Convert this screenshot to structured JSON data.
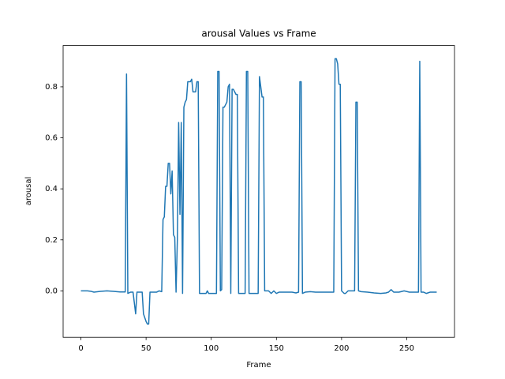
{
  "chart_data": {
    "type": "line",
    "title": "arousal Values vs Frame",
    "x_label": "Frame",
    "y_label": "arousal",
    "x": [
      0,
      5,
      8,
      10,
      15,
      20,
      25,
      30,
      34,
      35,
      36,
      38,
      40,
      42,
      43,
      47,
      48,
      50,
      51,
      52,
      53,
      56,
      58,
      60,
      62,
      63,
      64,
      65,
      66,
      67,
      68,
      69,
      70,
      71,
      72,
      73,
      74,
      75,
      76,
      77,
      78,
      79,
      80,
      81,
      82,
      84,
      85,
      86,
      88,
      89,
      90,
      91,
      93,
      96,
      97,
      98,
      104,
      105,
      106,
      107,
      108,
      109,
      110,
      112,
      113,
      114,
      115,
      116,
      117,
      119,
      120,
      121,
      126,
      127,
      128,
      129,
      136,
      137,
      138,
      139,
      140,
      141,
      144,
      146,
      148,
      150,
      152,
      157,
      162,
      165,
      167,
      168,
      169,
      170,
      172,
      176,
      180,
      185,
      190,
      194,
      195,
      196,
      197,
      198,
      199,
      200,
      202,
      203,
      205,
      210,
      211,
      212,
      213,
      215,
      220,
      225,
      230,
      234,
      236,
      238,
      240,
      244,
      248,
      252,
      258,
      259,
      260,
      261,
      263,
      265,
      268,
      273
    ],
    "series": [
      {
        "name": "arousal",
        "color": "#1f77b4",
        "values": [
          0,
          0,
          -0.002,
          -0.005,
          -0.002,
          0,
          -0.002,
          -0.004,
          -0.004,
          0.85,
          -0.01,
          -0.005,
          -0.005,
          -0.09,
          -0.005,
          -0.005,
          -0.09,
          -0.12,
          -0.13,
          -0.13,
          -0.005,
          -0.005,
          -0.005,
          0,
          -0.003,
          0.28,
          0.29,
          0.41,
          0.41,
          0.5,
          0.5,
          0.38,
          0.47,
          0.22,
          0.21,
          -0.005,
          0.2,
          0.66,
          0.3,
          0.66,
          -0.01,
          0.72,
          0.74,
          0.75,
          0.82,
          0.82,
          0.83,
          0.78,
          0.78,
          0.82,
          0.82,
          -0.01,
          -0.01,
          -0.01,
          0,
          -0.01,
          -0.01,
          0.86,
          0.86,
          0,
          0.005,
          0.72,
          0.72,
          0.74,
          0.8,
          0.81,
          -0.01,
          0.79,
          0.79,
          0.77,
          0.77,
          -0.01,
          -0.01,
          0.86,
          0.86,
          -0.01,
          -0.01,
          0.84,
          0.8,
          0.76,
          0.76,
          0,
          0,
          -0.01,
          0,
          -0.01,
          -0.005,
          -0.005,
          -0.005,
          -0.008,
          -0.005,
          0.82,
          0.82,
          -0.01,
          -0.005,
          -0.003,
          -0.005,
          -0.005,
          -0.005,
          -0.005,
          0.91,
          0.91,
          0.89,
          0.81,
          0.81,
          0,
          -0.01,
          -0.01,
          0,
          0,
          0.74,
          0.74,
          0,
          -0.003,
          -0.005,
          -0.008,
          -0.01,
          -0.008,
          -0.005,
          0.005,
          -0.005,
          -0.005,
          0,
          -0.005,
          -0.005,
          -0.005,
          0.9,
          -0.005,
          -0.005,
          -0.01,
          -0.005,
          -0.005
        ]
      }
    ],
    "xlim": [
      -13.65,
      286.65
    ],
    "xticks": [
      0,
      50,
      100,
      150,
      200,
      250
    ],
    "ylim": [
      -0.182,
      0.962
    ],
    "yticks": [
      {
        "value": 0,
        "label": "0.0"
      },
      {
        "value": 0.2,
        "label": "0.2"
      },
      {
        "value": 0.4,
        "label": "0.4"
      },
      {
        "value": 0.6,
        "label": "0.6"
      },
      {
        "value": 0.8,
        "label": "0.8"
      }
    ],
    "grid": false
  }
}
